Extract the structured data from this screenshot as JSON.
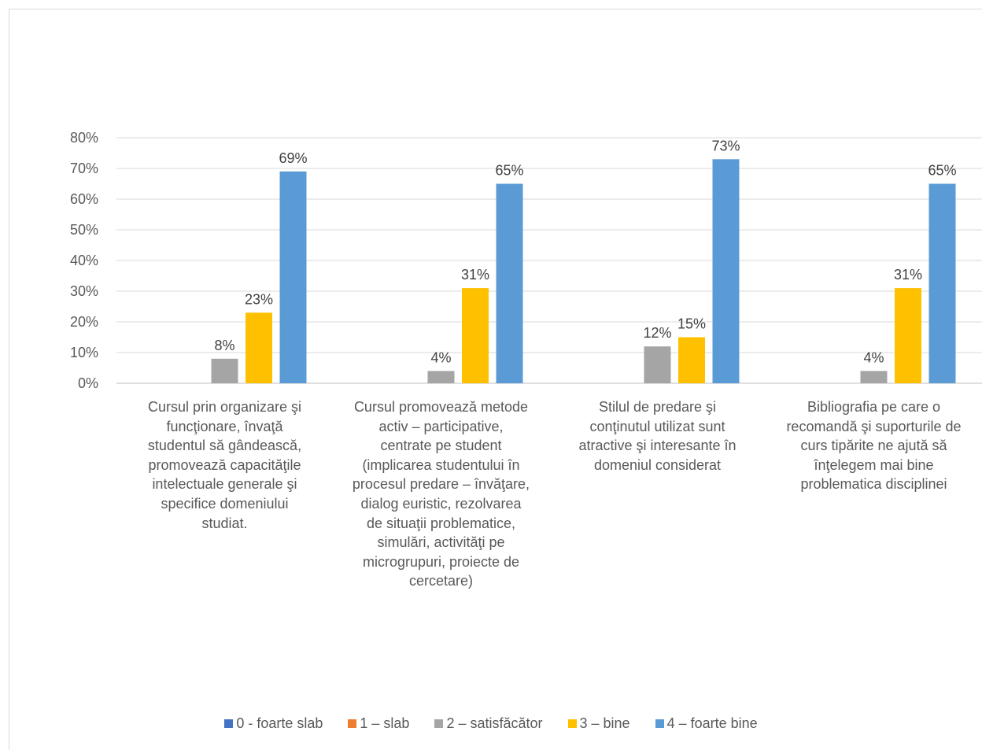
{
  "chart_data": {
    "type": "bar",
    "categories": [
      "Cursul prin organizare şi funcţionare, învaţă studentul să gândească, promovează capacităţile intelectuale generale şi specifice domeniului studiat.",
      "Cursul promovează  metode activ – participative, centrate pe student (implicarea studentului în procesul predare – învăţare, dialog euristic, rezolvarea de situaţii problematice, simulări, activităţi pe microgrupuri, proiecte de cercetare)",
      "Stilul de predare şi conţinutul utilizat  sunt atractive şi interesante în domeniul considerat",
      "Bibliografia pe care o recomandă şi suporturile de curs tipărite ne ajută să înţelegem mai bine problematica disciplinei"
    ],
    "category_lines": [
      [
        "Cursul prin organizare şi",
        "funcţionare, învaţă",
        "studentul să gândească,",
        "promovează capacităţile",
        "intelectuale generale şi",
        "specifice domeniului",
        "studiat."
      ],
      [
        "Cursul promovează  metode",
        "activ – participative,",
        "centrate pe student",
        "(implicarea studentului în",
        "procesul predare – învăţare,",
        "dialog euristic, rezolvarea",
        "de situaţii problematice,",
        "simulări, activităţi pe",
        "microgrupuri, proiecte de",
        "cercetare)"
      ],
      [
        "Stilul de predare şi",
        "conţinutul utilizat  sunt",
        "atractive şi interesante în",
        "domeniul considerat"
      ],
      [
        "Bibliografia pe care o",
        "recomandă şi suporturile de",
        "curs tipărite ne ajută să",
        "înţelegem mai bine",
        "problematica disciplinei"
      ]
    ],
    "series": [
      {
        "name": "0 - foarte slab",
        "color": "#4472c4",
        "values": [
          0,
          0,
          0,
          0
        ],
        "labels": [
          null,
          null,
          null,
          null
        ]
      },
      {
        "name": "1 – slab",
        "color": "#ed7d31",
        "values": [
          0,
          0,
          0,
          0
        ],
        "labels": [
          null,
          null,
          null,
          null
        ]
      },
      {
        "name": "2 – satisfăcător",
        "color": "#a5a5a5",
        "values": [
          8,
          4,
          12,
          4
        ],
        "labels": [
          "8%",
          "4%",
          "12%",
          "4%"
        ]
      },
      {
        "name": "3 – bine",
        "color": "#ffc000",
        "values": [
          23,
          31,
          15,
          31
        ],
        "labels": [
          "23%",
          "31%",
          "15%",
          "31%"
        ]
      },
      {
        "name": "4 – foarte bine",
        "color": "#5b9bd5",
        "values": [
          69,
          65,
          73,
          65
        ],
        "labels": [
          "69%",
          "65%",
          "73%",
          "65%"
        ]
      }
    ],
    "y_ticks": [
      "0%",
      "10%",
      "20%",
      "30%",
      "40%",
      "50%",
      "60%",
      "70%",
      "80%"
    ],
    "ylim": [
      0,
      80
    ],
    "grid": true,
    "legend_position": "bottom",
    "title": "",
    "xlabel": "",
    "ylabel": ""
  }
}
